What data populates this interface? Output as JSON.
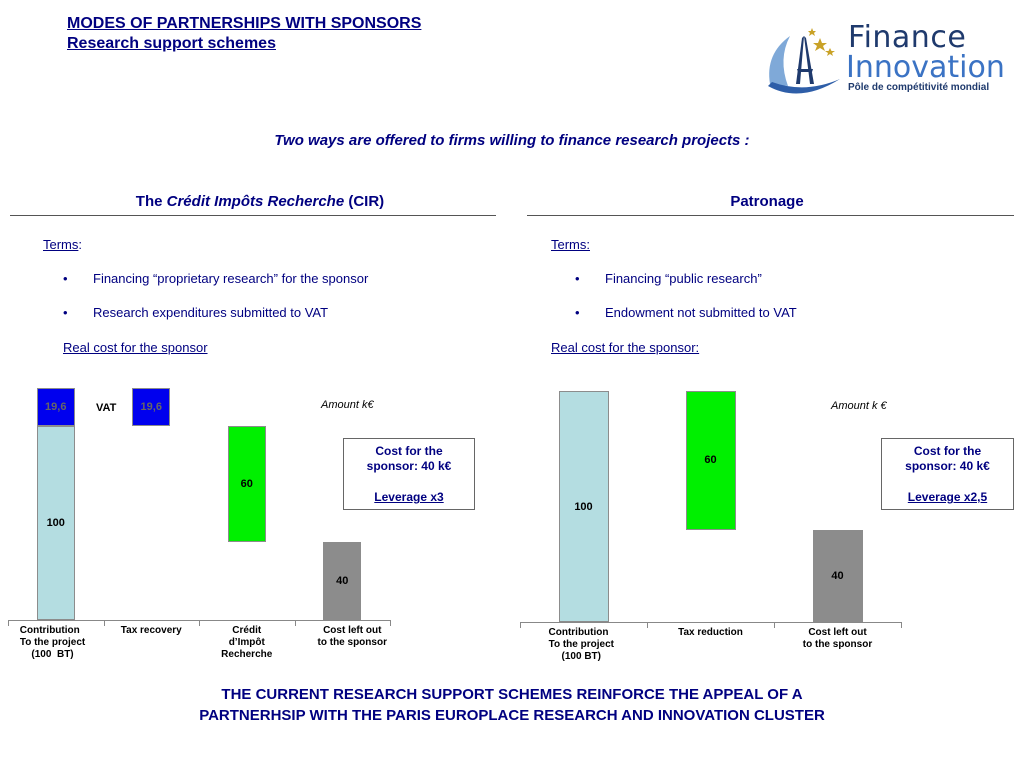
{
  "title_line1": "MODES OF PARTNERSHIPS WITH SPONSORS",
  "title_line2": "Research support schemes",
  "logo": {
    "line1": "Finance",
    "line2": "Innovation",
    "tagline": "Pôle de compétitivité mondial"
  },
  "intro": "Two ways are offered to firms willing to finance research projects :",
  "left": {
    "heading_pre": "The ",
    "heading_em": "Crédit Impôts Recherche",
    "heading_post": " (CIR)",
    "terms_label": "Terms",
    "terms_colon": ":",
    "bullets": [
      "Financing  “proprietary research” for the sponsor",
      "Research expenditures submitted to VAT"
    ],
    "real_cost": "Real cost for the sponsor ",
    "amount_label": "Amount  k€",
    "vat_label": "VAT",
    "callout_line1": "Cost for the",
    "callout_line2": "sponsor: 40 k€",
    "callout_leverage": "Leverage x3"
  },
  "right": {
    "heading": "Patronage",
    "terms_label": "Terms:",
    "bullets": [
      "Financing “public research”",
      "Endowment not submitted to VAT"
    ],
    "real_cost": "Real cost for the sponsor:",
    "amount_label": "Amount k €",
    "callout_line1": "Cost for the",
    "callout_line2": "sponsor: 40 k€",
    "callout_leverage": "Leverage x2,5"
  },
  "chart_data": [
    {
      "type": "bar",
      "subtype": "waterfall",
      "categories": [
        "Contribution\n  To the project\n  (100  BT)",
        "Tax recovery",
        "Crédit\nd’Impôt\nRecherche",
        "Cost left out\nto the sponsor"
      ],
      "segments": [
        {
          "category": 0,
          "base": 0,
          "value": 100,
          "label": "100",
          "color": "#b4dde1"
        },
        {
          "category": 0,
          "base": 100,
          "value": 19.6,
          "label": "19,6",
          "color": "#0000ee"
        },
        {
          "category": 1,
          "base": 100,
          "value": 19.6,
          "label": "19,6",
          "color": "#0000ee"
        },
        {
          "category": 2,
          "base": 40,
          "value": 60,
          "label": "60",
          "color": "#00f000"
        },
        {
          "category": 3,
          "base": 0,
          "value": 40,
          "label": "40",
          "color": "#8c8c8c"
        }
      ],
      "ylim": [
        0,
        119.6
      ]
    },
    {
      "type": "bar",
      "subtype": "waterfall",
      "categories": [
        "Contribution\n  To the project\n  (100 BT)",
        "Tax reduction",
        "Cost left out\nto the sponsor"
      ],
      "segments": [
        {
          "category": 0,
          "base": 0,
          "value": 100,
          "label": "100",
          "color": "#b4dde1"
        },
        {
          "category": 1,
          "base": 40,
          "value": 60,
          "label": "60",
          "color": "#00f000"
        },
        {
          "category": 2,
          "base": 0,
          "value": 40,
          "label": "40",
          "color": "#8c8c8c"
        }
      ],
      "ylim": [
        0,
        100
      ]
    }
  ],
  "conclusion_line1": "THE CURRENT RESEARCH SUPPORT SCHEMES REINFORCE THE APPEAL OF A",
  "conclusion_line2": "PARTNERHSIP WITH THE PARIS EUROPLACE RESEARCH AND INNOVATION CLUSTER"
}
